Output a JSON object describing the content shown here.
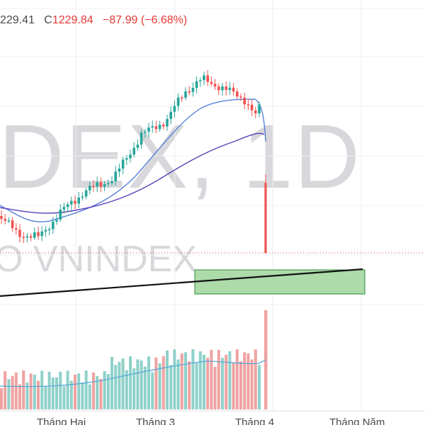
{
  "header": {
    "open_value": "229.41",
    "close_prefix": "C",
    "close_value": "1229.84",
    "change": "−87.99 (−6.68%)"
  },
  "watermark": {
    "big": "DEX, 1D",
    "small": "O VNINDEX"
  },
  "x_axis": {
    "labels": [
      "Tháng Hai",
      "Tháng 3",
      "Tháng 4",
      "Tháng Năm"
    ]
  },
  "colors": {
    "up": "#26a69a",
    "down": "#ef5350",
    "vol_up": "#8fd1c9",
    "vol_down": "#f0a2a2",
    "ma_fast": "#4a78d8",
    "ma_slow": "#5b3fb8",
    "zone_fill": "#9fd59a",
    "zone_stroke": "#2e8b3a",
    "trendline": "#111111",
    "last_price_line": "#e53935"
  },
  "chart_data": {
    "type": "candlestick",
    "symbol_shown": "VNINDEX",
    "interval_shown": "1D",
    "last_close": 1229.84,
    "change": -87.99,
    "change_pct": -6.68
  }
}
